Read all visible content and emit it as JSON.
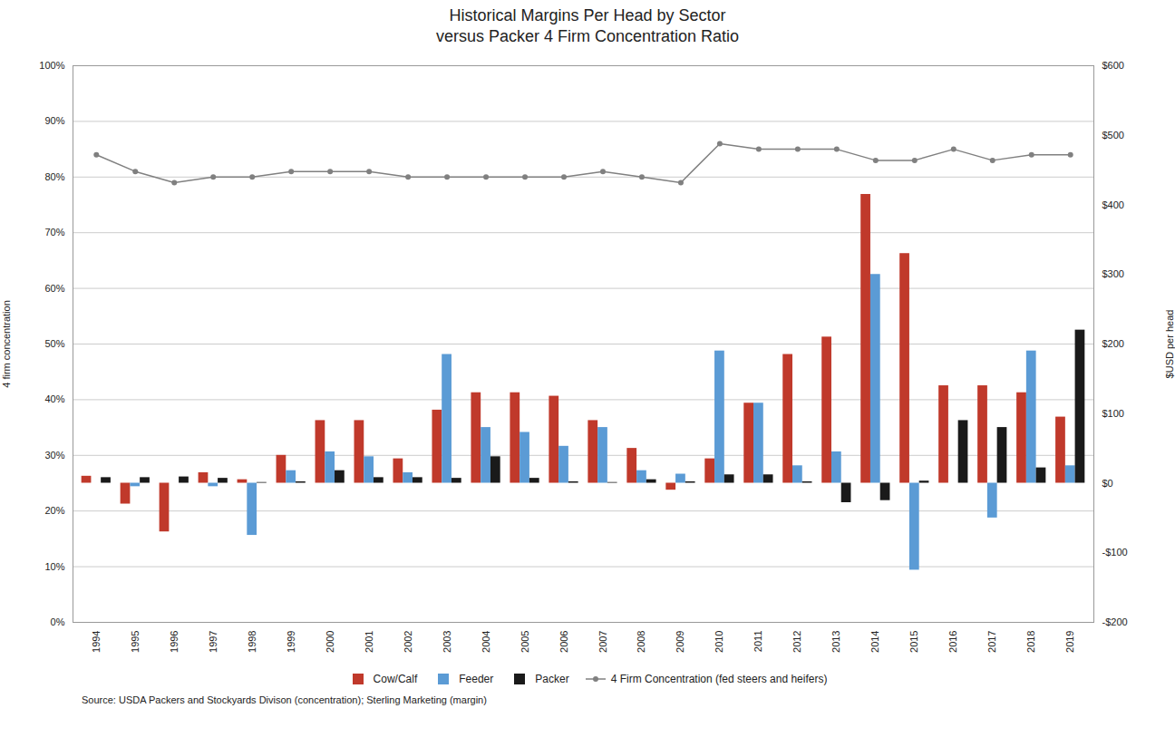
{
  "chart_data": {
    "type": "bar",
    "title": "Historical Margins Per Head by Sector",
    "subtitle": "versus Packer 4 Firm Concentration Ratio",
    "categories": [
      "1994",
      "1995",
      "1996",
      "1997",
      "1998",
      "1999",
      "2000",
      "2001",
      "2002",
      "2003",
      "2004",
      "2005",
      "2006",
      "2007",
      "2008",
      "2009",
      "2010",
      "2011",
      "2012",
      "2013",
      "2014",
      "2015",
      "2016",
      "2017",
      "2018",
      "2019"
    ],
    "series": [
      {
        "name": "Cow/Calf",
        "color": "#c0392b",
        "axis": "y2",
        "values": [
          10,
          -30,
          -70,
          15,
          5,
          40,
          90,
          90,
          35,
          105,
          130,
          130,
          125,
          90,
          50,
          -10,
          35,
          115,
          185,
          210,
          415,
          330,
          140,
          140,
          130,
          95
        ]
      },
      {
        "name": "Feeder",
        "color": "#5b9bd5",
        "axis": "y2",
        "values": [
          0,
          -5,
          0,
          -5,
          -75,
          18,
          45,
          38,
          15,
          185,
          80,
          73,
          53,
          80,
          18,
          13,
          190,
          115,
          25,
          45,
          300,
          -125,
          0,
          -50,
          190,
          25
        ]
      },
      {
        "name": "Packer",
        "color": "#1a1a1a",
        "axis": "y2",
        "values": [
          8,
          8,
          9,
          7,
          1,
          2,
          18,
          8,
          8,
          7,
          38,
          7,
          2,
          1,
          5,
          2,
          12,
          12,
          2,
          -28,
          -25,
          3,
          90,
          80,
          22,
          220
        ]
      },
      {
        "name": "4 Firm Concentration (fed steers and heifers)",
        "type": "line",
        "color": "#808080",
        "marker": "circle",
        "values": [
          84,
          81,
          79,
          80,
          80,
          81,
          81,
          81,
          80,
          80,
          80,
          80,
          80,
          81,
          80,
          79,
          86,
          85,
          85,
          85,
          83,
          83,
          85,
          83,
          84,
          84
        ]
      }
    ],
    "ylabel": "4 firm concentration",
    "y2label": "$USD per head",
    "ylim": [
      0,
      100
    ],
    "yticks": [
      {
        "value": 0,
        "label": "0%"
      },
      {
        "value": 10,
        "label": "10%"
      },
      {
        "value": 20,
        "label": "20%"
      },
      {
        "value": 30,
        "label": "30%"
      },
      {
        "value": 40,
        "label": "40%"
      },
      {
        "value": 50,
        "label": "50%"
      },
      {
        "value": 60,
        "label": "60%"
      },
      {
        "value": 70,
        "label": "70%"
      },
      {
        "value": 80,
        "label": "80%"
      },
      {
        "value": 90,
        "label": "90%"
      },
      {
        "value": 100,
        "label": "100%"
      }
    ],
    "y2lim": [
      -200,
      600
    ],
    "y2ticks": [
      {
        "value": -200,
        "label": "-$200"
      },
      {
        "value": -100,
        "label": "-$100"
      },
      {
        "value": 0,
        "label": "$0"
      },
      {
        "value": 100,
        "label": "$100"
      },
      {
        "value": 200,
        "label": "$200"
      },
      {
        "value": 300,
        "label": "$300"
      },
      {
        "value": 400,
        "label": "$400"
      },
      {
        "value": 500,
        "label": "$500"
      },
      {
        "value": 600,
        "label": "$600"
      }
    ],
    "grid": true,
    "legend": "bottom",
    "annotations": [
      "Source: USDA Packers and Stockyards Divison (concentration); Sterling Marketing (margin)"
    ]
  }
}
